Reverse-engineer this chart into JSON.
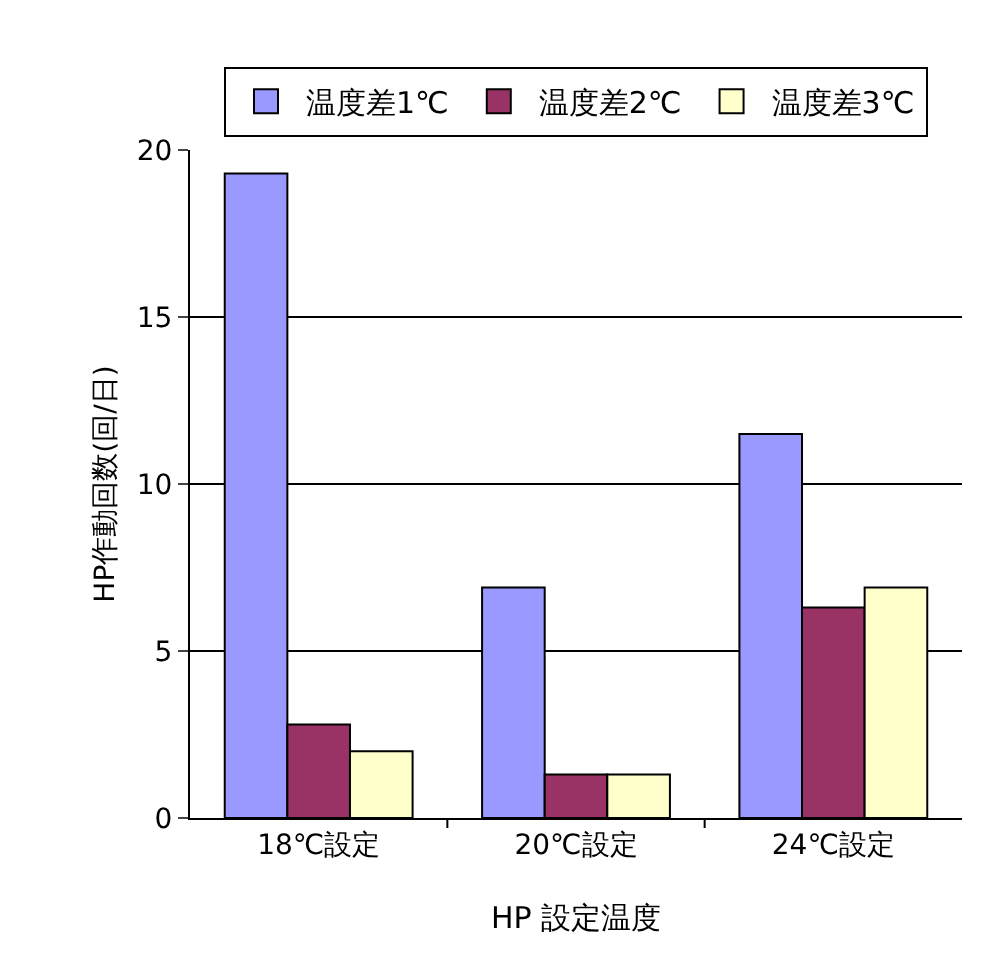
{
  "chart_data": {
    "type": "bar",
    "xlabel": "HP 設定温度",
    "ylabel": "HP作動回数(回/日)",
    "categories": [
      "18℃設定",
      "20℃設定",
      "24℃設定"
    ],
    "series": [
      {
        "name": "温度差1℃",
        "color": "#9999ff",
        "values": [
          19.3,
          6.9,
          11.5
        ]
      },
      {
        "name": "温度差2℃",
        "color": "#993366",
        "values": [
          2.8,
          1.3,
          6.3
        ]
      },
      {
        "name": "温度差3℃",
        "color": "#ffffcc",
        "values": [
          2.0,
          1.3,
          6.9
        ]
      }
    ],
    "ylim": [
      0,
      20
    ],
    "yticks": [
      0,
      5,
      10,
      15,
      20
    ],
    "grid": "y",
    "legend": "top"
  }
}
